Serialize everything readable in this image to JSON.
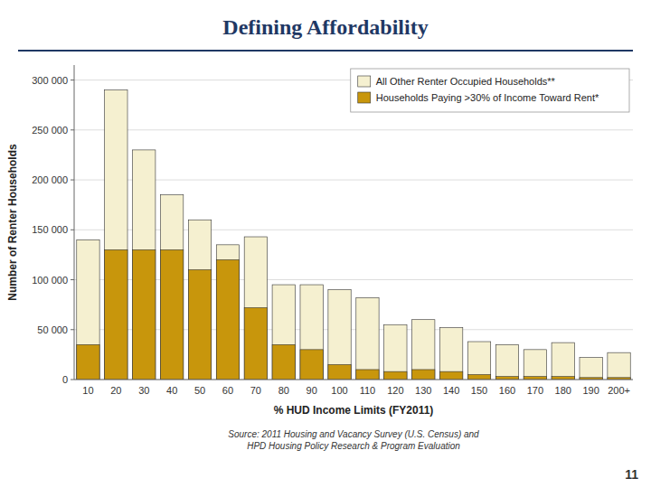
{
  "chart_data": {
    "type": "bar",
    "title": "Defining Affordability",
    "categories": [
      "10",
      "20",
      "30",
      "40",
      "50",
      "60",
      "70",
      "80",
      "90",
      "100",
      "110",
      "120",
      "130",
      "140",
      "150",
      "160",
      "170",
      "180",
      "190",
      "200+"
    ],
    "series": [
      {
        "name": "All Other Renter Occupied Households**",
        "color": "#F5F0D0",
        "values": [
          140000,
          290000,
          230000,
          185000,
          160000,
          135000,
          143000,
          95000,
          95000,
          90000,
          82000,
          55000,
          60000,
          52000,
          38000,
          35000,
          30000,
          37000,
          22000,
          27000
        ]
      },
      {
        "name": "Households Paying >30% of Income Toward Rent*",
        "color": "#C8960C",
        "values": [
          35000,
          130000,
          130000,
          130000,
          110000,
          120000,
          72000,
          35000,
          30000,
          15000,
          10000,
          8000,
          10000,
          8000,
          5000,
          3000,
          3000,
          3000,
          2000,
          2000
        ]
      }
    ],
    "x_label": "% HUD Income Limits (FY2011)",
    "y_label": "Number of Renter Households",
    "ylim": [
      0,
      315000
    ],
    "yticks": [
      0,
      {
        "value": 50000,
        "label": "50 000"
      },
      {
        "value": 100000,
        "label": "100 000"
      },
      {
        "value": 150000,
        "label": "150 000"
      },
      {
        "value": 200000,
        "label": "200 000"
      },
      {
        "value": 250000,
        "label": "250 000"
      },
      {
        "value": 300000,
        "label": "300 000"
      }
    ],
    "grid": true,
    "legend": "upper right",
    "annotations": [
      "Source: 2011 Housing and Vacancy Survey (U.S. Census) and\nHPD Housing Policy Research & Program Evaluation",
      "11"
    ]
  }
}
